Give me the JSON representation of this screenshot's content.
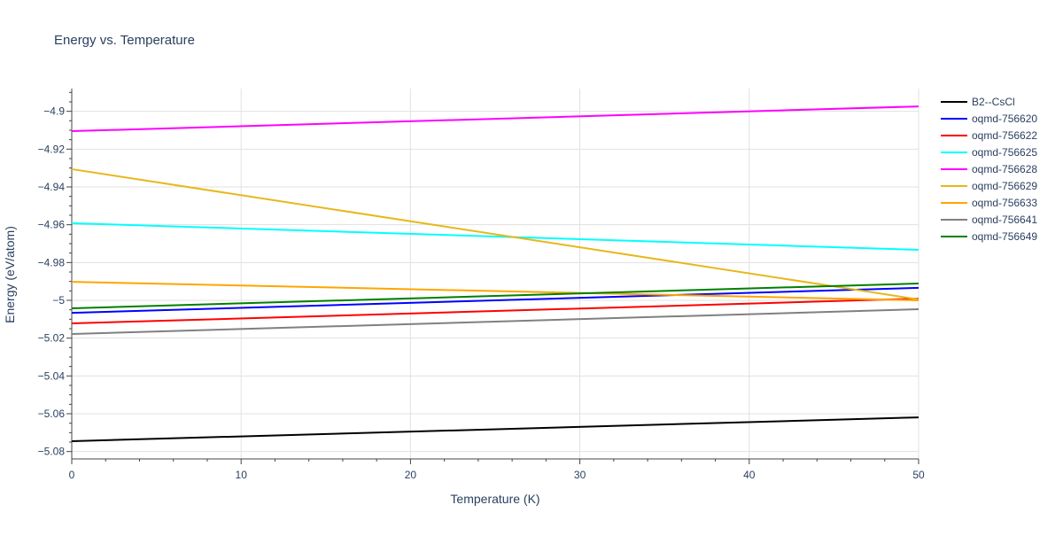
{
  "chart_data": {
    "type": "line",
    "title": "Energy vs. Temperature",
    "xlabel": "Temperature (K)",
    "ylabel": "Energy (eV/atom)",
    "xlim": [
      0,
      50
    ],
    "ylim": [
      -5.084,
      -4.888
    ],
    "xticks": [
      0,
      10,
      20,
      30,
      40,
      50
    ],
    "yticks": [
      -4.9,
      -4.92,
      -4.94,
      -4.96,
      -4.98,
      -5,
      -5.02,
      -5.04,
      -5.06,
      -5.08
    ],
    "ytick_labels": [
      "−4.9",
      "−4.92",
      "−4.94",
      "−4.96",
      "−4.98",
      "−5",
      "−5.02",
      "−5.04",
      "−5.06",
      "−5.08"
    ],
    "grid": true,
    "legend_position": "right",
    "series": [
      {
        "name": "B2--CsCl",
        "color": "#000000",
        "x": [
          0,
          50
        ],
        "y": [
          -5.0745,
          -5.0619
        ]
      },
      {
        "name": "oqmd-756620",
        "color": "#0000ff",
        "x": [
          0,
          50
        ],
        "y": [
          -5.0066,
          -4.9934
        ]
      },
      {
        "name": "oqmd-756622",
        "color": "#ff0000",
        "x": [
          0,
          50
        ],
        "y": [
          -5.0122,
          -4.9991
        ]
      },
      {
        "name": "oqmd-756625",
        "color": "#00ffff",
        "x": [
          0,
          50
        ],
        "y": [
          -4.9592,
          -4.9733
        ]
      },
      {
        "name": "oqmd-756628",
        "color": "#ff00ff",
        "x": [
          0,
          50
        ],
        "y": [
          -4.9105,
          -4.8974
        ]
      },
      {
        "name": "oqmd-756629",
        "color": "#e6b81a",
        "x": [
          0,
          50
        ],
        "y": [
          -4.9306,
          -4.9995
        ]
      },
      {
        "name": "oqmd-756633",
        "color": "#ffa500",
        "x": [
          0,
          50
        ],
        "y": [
          -4.9902,
          -5.0
        ]
      },
      {
        "name": "oqmd-756641",
        "color": "#808080",
        "x": [
          0,
          50
        ],
        "y": [
          -5.0178,
          -5.0047
        ]
      },
      {
        "name": "oqmd-756649",
        "color": "#008000",
        "x": [
          0,
          50
        ],
        "y": [
          -5.0042,
          -4.9911
        ]
      }
    ]
  }
}
